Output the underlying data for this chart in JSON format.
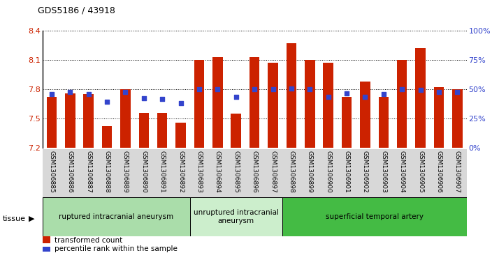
{
  "title": "GDS5186 / 43918",
  "samples": [
    "GSM1306885",
    "GSM1306886",
    "GSM1306887",
    "GSM1306888",
    "GSM1306889",
    "GSM1306890",
    "GSM1306891",
    "GSM1306892",
    "GSM1306893",
    "GSM1306894",
    "GSM1306895",
    "GSM1306896",
    "GSM1306897",
    "GSM1306898",
    "GSM1306899",
    "GSM1306900",
    "GSM1306901",
    "GSM1306902",
    "GSM1306903",
    "GSM1306904",
    "GSM1306905",
    "GSM1306906",
    "GSM1306907"
  ],
  "bar_values": [
    7.72,
    7.76,
    7.75,
    7.42,
    7.8,
    7.56,
    7.56,
    7.46,
    8.1,
    8.13,
    7.55,
    8.13,
    8.07,
    8.27,
    8.1,
    8.07,
    7.72,
    7.88,
    7.72,
    8.1,
    8.22,
    7.82,
    7.8
  ],
  "dot_values": [
    7.75,
    7.77,
    7.75,
    7.67,
    7.77,
    7.71,
    7.7,
    7.66,
    7.8,
    7.8,
    7.72,
    7.8,
    7.8,
    7.81,
    7.8,
    7.72,
    7.76,
    7.72,
    7.75,
    7.8,
    7.79,
    7.77,
    7.77
  ],
  "ymin": 7.2,
  "ymax": 8.4,
  "y_ticks_left": [
    7.2,
    7.5,
    7.8,
    8.1,
    8.4
  ],
  "right_ticks_pct": [
    0,
    25,
    50,
    75,
    100
  ],
  "bar_color": "#CC2200",
  "dot_color": "#3344CC",
  "bg_color": "#FFFFFF",
  "left_tick_color": "#CC2200",
  "right_tick_color": "#3344CC",
  "groups": [
    {
      "label": "ruptured intracranial aneurysm",
      "start": 0,
      "end": 8,
      "color": "#AADDAA"
    },
    {
      "label": "unruptured intracranial\naneurysm",
      "start": 8,
      "end": 13,
      "color": "#CCEECC"
    },
    {
      "label": "superficial temporal artery",
      "start": 13,
      "end": 23,
      "color": "#44BB44"
    }
  ],
  "tissue_label": "tissue",
  "legend_bar_label": "transformed count",
  "legend_dot_label": "percentile rank within the sample",
  "bar_base": 7.2
}
